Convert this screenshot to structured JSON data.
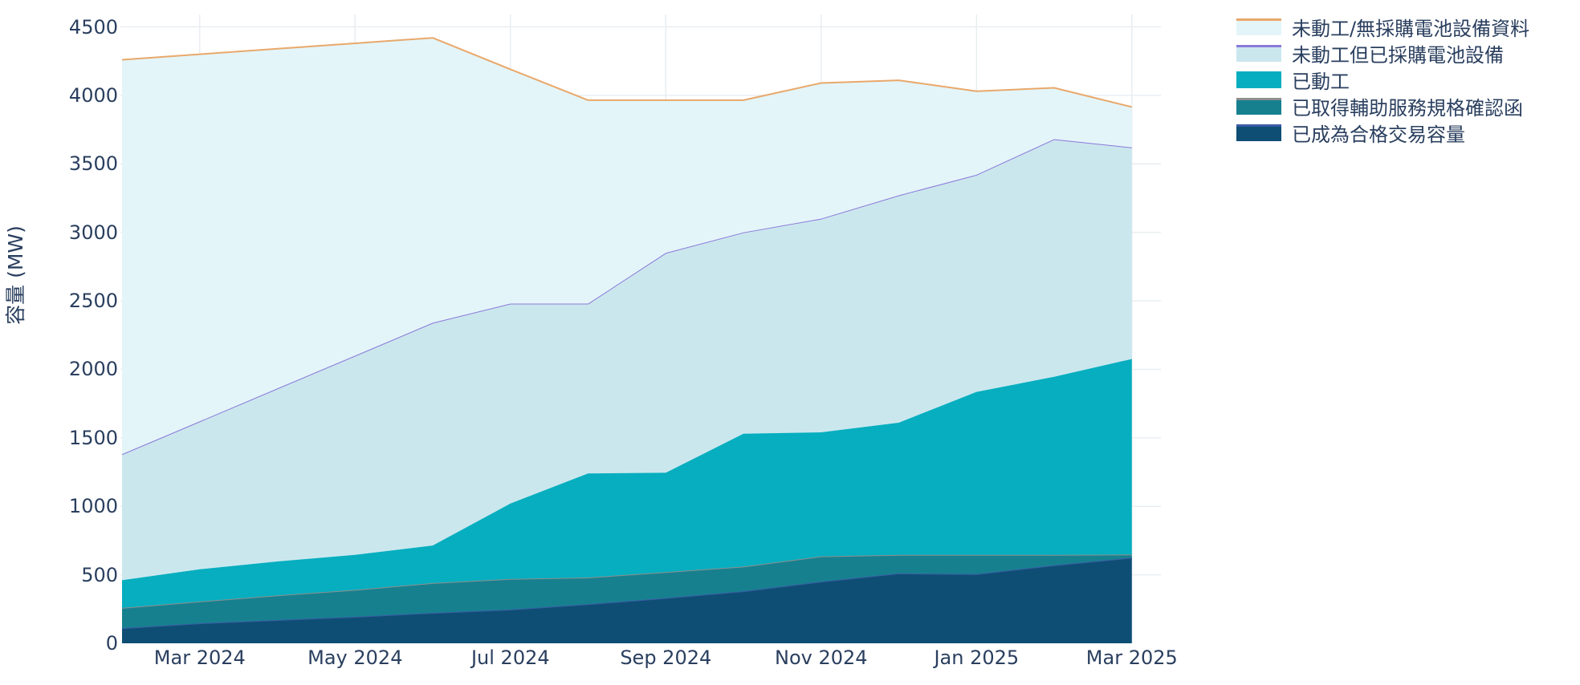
{
  "chart_data": {
    "type": "area",
    "stacked": true,
    "title": "",
    "xlabel": "",
    "ylabel": "容量 (MW)",
    "ylim": [
      0,
      4500
    ],
    "yticks": [
      0,
      500,
      1000,
      1500,
      2000,
      2500,
      3000,
      3500,
      4000,
      4500
    ],
    "grid": true,
    "legend_position": "top-right",
    "x": [
      "Feb 2024",
      "Mar 2024",
      "Apr 2024",
      "May 2024",
      "Jun 2024",
      "Jul 2024",
      "Aug 2024",
      "Sep 2024",
      "Oct 2024",
      "Nov 2024",
      "Dec 2024",
      "Jan 2025",
      "Feb 2025",
      "Mar 2025"
    ],
    "xtick_labels": [
      "Mar 2024",
      "May 2024",
      "Jul 2024",
      "Sep 2024",
      "Nov 2024",
      "Jan 2025",
      "Mar 2025"
    ],
    "xtick_indices": [
      1,
      3,
      5,
      7,
      9,
      11,
      13
    ],
    "series": [
      {
        "id": "qualified-trading-capacity",
        "label": "已成為合格交易容量",
        "fill": "#0e4e74",
        "line": "#3b5ba5",
        "values": [
          110,
          146,
          170,
          193,
          222,
          246,
          285,
          330,
          380,
          450,
          510,
          505,
          570,
          625
        ]
      },
      {
        "id": "ancillary-spec-confirmed",
        "label": "已取得輔助服務規格確認函",
        "fill": "#17808f",
        "line": "#8e8e8e",
        "values": [
          148,
          159,
          180,
          197,
          218,
          224,
          195,
          190,
          180,
          185,
          135,
          140,
          75,
          23
        ]
      },
      {
        "id": "construction-started",
        "label": "已動工",
        "fill": "#06aebf",
        "line": "#06aebf",
        "values": [
          202,
          235,
          247,
          256,
          274,
          550,
          760,
          725,
          970,
          905,
          965,
          1190,
          1300,
          1427
        ]
      },
      {
        "id": "not-started-equipment-procured",
        "label": "未動工但已採購電池設備",
        "fill": "#cbe7ee",
        "line": "#8b79d9",
        "values": [
          920,
          1080,
          1263,
          1454,
          1626,
          1460,
          1240,
          1605,
          1470,
          1560,
          1660,
          1585,
          1735,
          1545
        ]
      },
      {
        "id": "not-started-no-procurement",
        "label": "未動工/無採購電池設備資料",
        "fill": "#e3f5f9",
        "line": "#e9a86b",
        "values": [
          2880,
          2680,
          2480,
          2280,
          2080,
          1710,
          1485,
          1115,
          965,
          990,
          840,
          610,
          375,
          295
        ]
      }
    ]
  },
  "colors": {
    "axis_text": "#2a3f5f",
    "gridline": "#e9eef2",
    "background": "#ffffff"
  }
}
